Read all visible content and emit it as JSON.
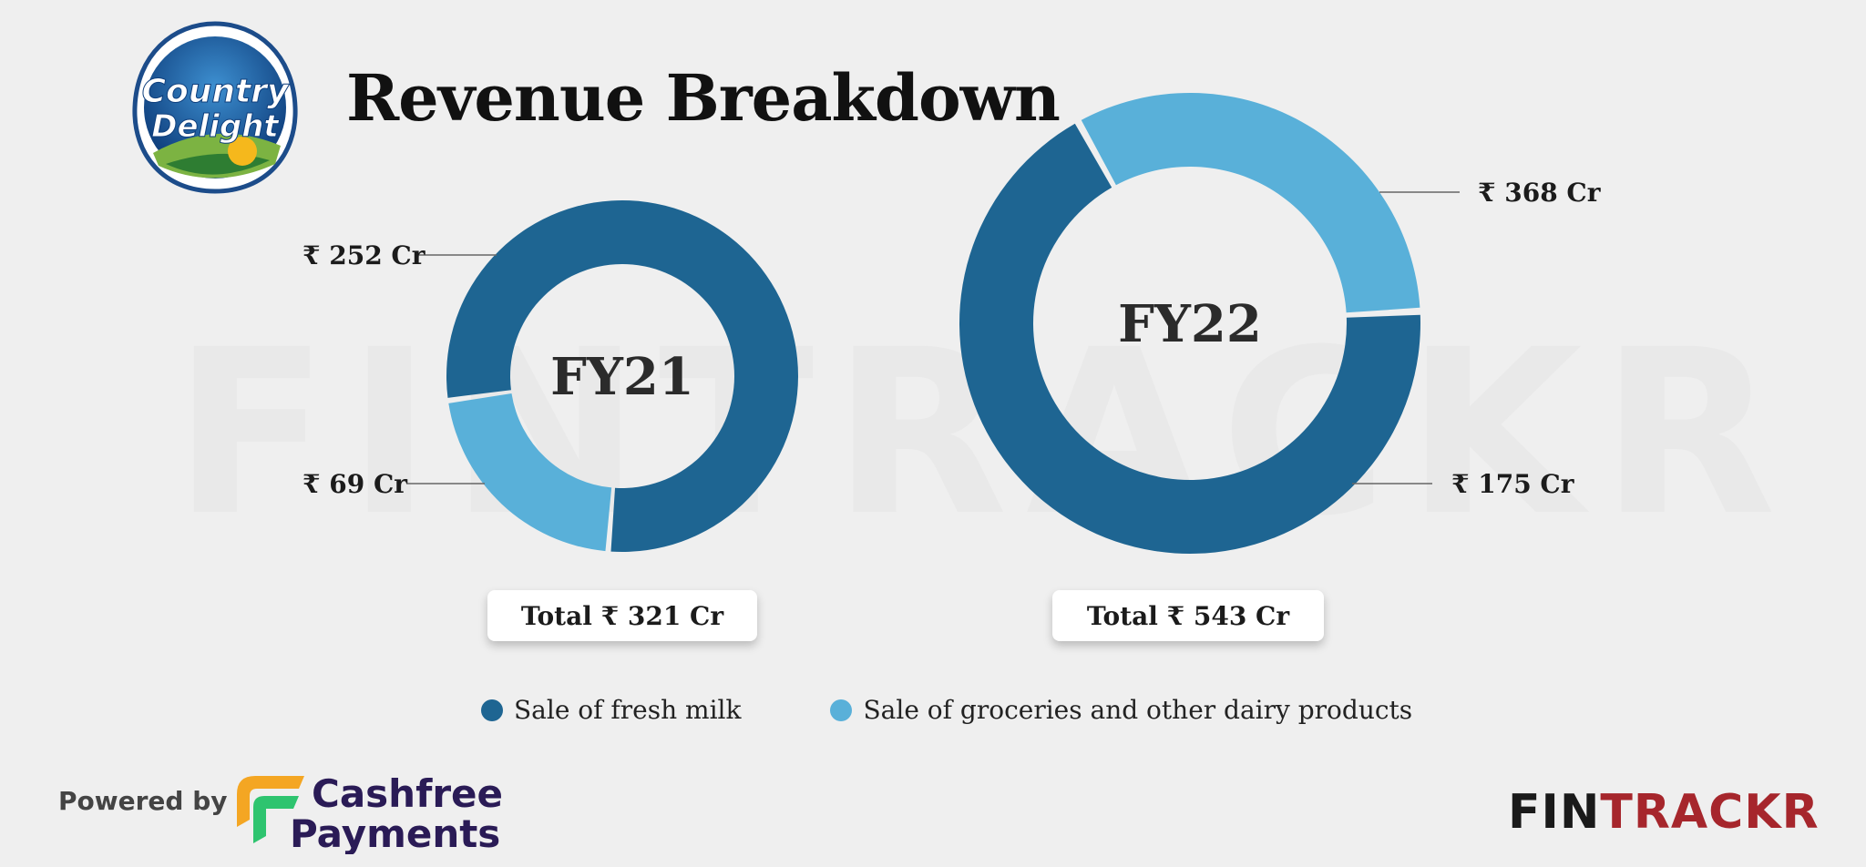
{
  "watermark": "FINTRACKR",
  "brand_logo": {
    "line1": "Country",
    "line2": "Delight"
  },
  "title": "Revenue Breakdown",
  "chart_data": [
    {
      "type": "pie",
      "center_label": "FY21",
      "categories": [
        "Sale of fresh milk",
        "Sale of groceries and other dairy products"
      ],
      "values": [
        252,
        69
      ],
      "value_labels": [
        "₹ 252 Cr",
        "₹ 69 Cr"
      ],
      "total_label": "Total ₹ 321 Cr"
    },
    {
      "type": "pie",
      "center_label": "FY22",
      "categories": [
        "Sale of fresh milk",
        "Sale of groceries and other dairy products"
      ],
      "values": [
        368,
        175
      ],
      "value_labels": [
        "₹ 368 Cr",
        "₹ 175 Cr"
      ],
      "total_label": "Total ₹ 543 Cr"
    }
  ],
  "legend": {
    "items": [
      {
        "label": "Sale of fresh milk",
        "color": "#1e6592"
      },
      {
        "label": "Sale of groceries and other dairy products",
        "color": "#59b0d9"
      }
    ]
  },
  "footer": {
    "powered_by": "Powered by",
    "cashfree_line1": "Cashfree",
    "cashfree_line2": "Payments",
    "fintrackr_part1": "FIN",
    "fintrackr_part2": "TRACKR"
  },
  "colors": {
    "dark_series": "#1e6592",
    "light_series": "#59b0d9",
    "cashfree_text": "#2a1b56",
    "fintrackr_dark": "#1a1a1a",
    "fintrackr_red": "#a6262c"
  }
}
